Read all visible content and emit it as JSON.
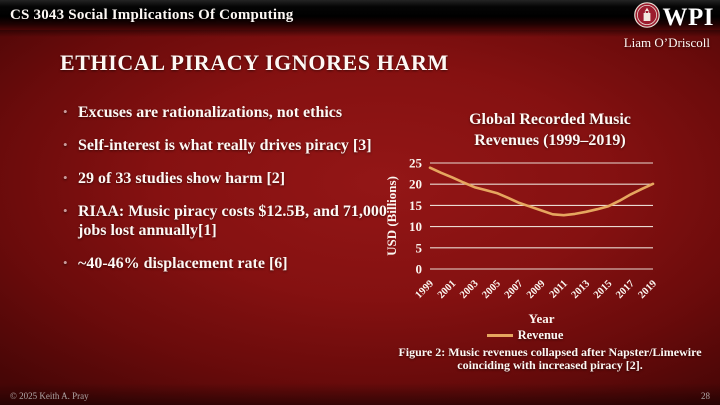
{
  "header": {
    "course": "CS 3043 Social Implications Of Computing",
    "logo_text": "WPI",
    "author": "Liam O’Driscoll"
  },
  "slide": {
    "title": "ETHICAL PIRACY IGNORES HARM",
    "bullets": [
      "Excuses are rationalizations, not ethics",
      "Self-interest is what really drives piracy [3]",
      "29 of 33 studies show harm [2]",
      "RIAA: Music piracy costs $12.5B, and 71,000 jobs lost annually[1]",
      "~40-46% displacement rate [6]"
    ]
  },
  "chart_data": {
    "type": "line",
    "title": "Global Recorded Music Revenues (1999–2019)",
    "xlabel": "Year",
    "ylabel": "USD (Billions)",
    "ylim": [
      0,
      25
    ],
    "ytick_step": 5,
    "grid": true,
    "legend_position": "bottom",
    "xtick_every": 2,
    "x": [
      1999,
      2000,
      2001,
      2002,
      2003,
      2004,
      2005,
      2006,
      2007,
      2008,
      2009,
      2010,
      2011,
      2012,
      2013,
      2014,
      2015,
      2016,
      2017,
      2018,
      2019
    ],
    "series": [
      {
        "name": "Revenue",
        "color": "#e6a65f",
        "values": [
          23.9,
          22.7,
          21.6,
          20.4,
          19.3,
          18.6,
          17.9,
          16.8,
          15.6,
          14.7,
          13.8,
          12.9,
          12.7,
          13.0,
          13.5,
          14.1,
          14.8,
          16.1,
          17.6,
          18.9,
          20.1
        ]
      }
    ],
    "caption": "Figure 2: Music revenues collapsed after Napster/Limewire coinciding with increased piracy [2]."
  },
  "footer": {
    "copyright": "© 2025 Keith A. Pray",
    "page_number": "28"
  },
  "colors": {
    "accent_line": "#e6a65f",
    "background": "#851111",
    "seal_red": "#9c1c2e"
  }
}
